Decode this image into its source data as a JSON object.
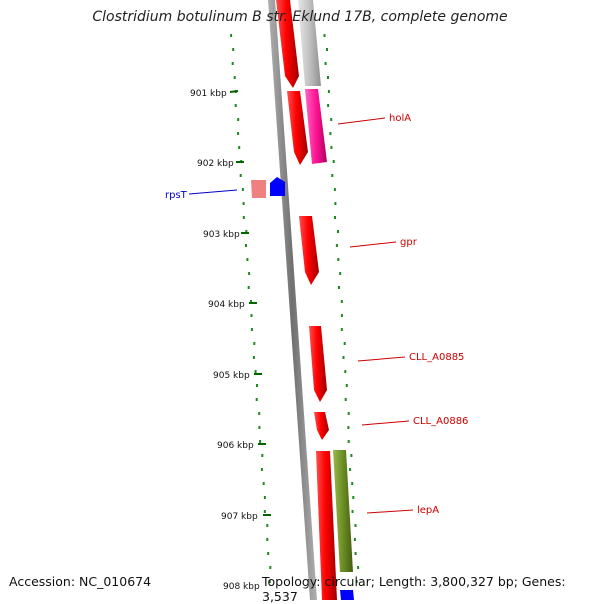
{
  "title": "Clostridium botulinum B str. Eklund 17B, complete genome",
  "footer": {
    "accession": "Accession: NC_010674",
    "summary": "Topology: circular; Length: 3,800,327 bp; Genes: 3,537"
  },
  "ticks": [
    "901 kbp",
    "902 kbp",
    "903 kbp",
    "904 kbp",
    "905 kbp",
    "906 kbp",
    "907 kbp",
    "908 kbp"
  ],
  "genes": [
    {
      "label": "holA",
      "color": "#dd0000"
    },
    {
      "label": "rpsT",
      "color": "#0000cc"
    },
    {
      "label": "gpr",
      "color": "#dd0000"
    },
    {
      "label": "CLL_A0885",
      "color": "#dd0000"
    },
    {
      "label": "CLL_A0886",
      "color": "#dd0000"
    },
    {
      "label": "lepA",
      "color": "#dd0000"
    }
  ],
  "colors": {
    "cds_red": "#ff0000",
    "cds_pink": "#ff1493",
    "cds_grey": "#c0c0c0",
    "cds_salmon": "#f08080",
    "rrna_blue": "#0000ff",
    "olive": "#6b8e23",
    "gc_dots": "#1e8a1e",
    "backbone": "#808080"
  }
}
